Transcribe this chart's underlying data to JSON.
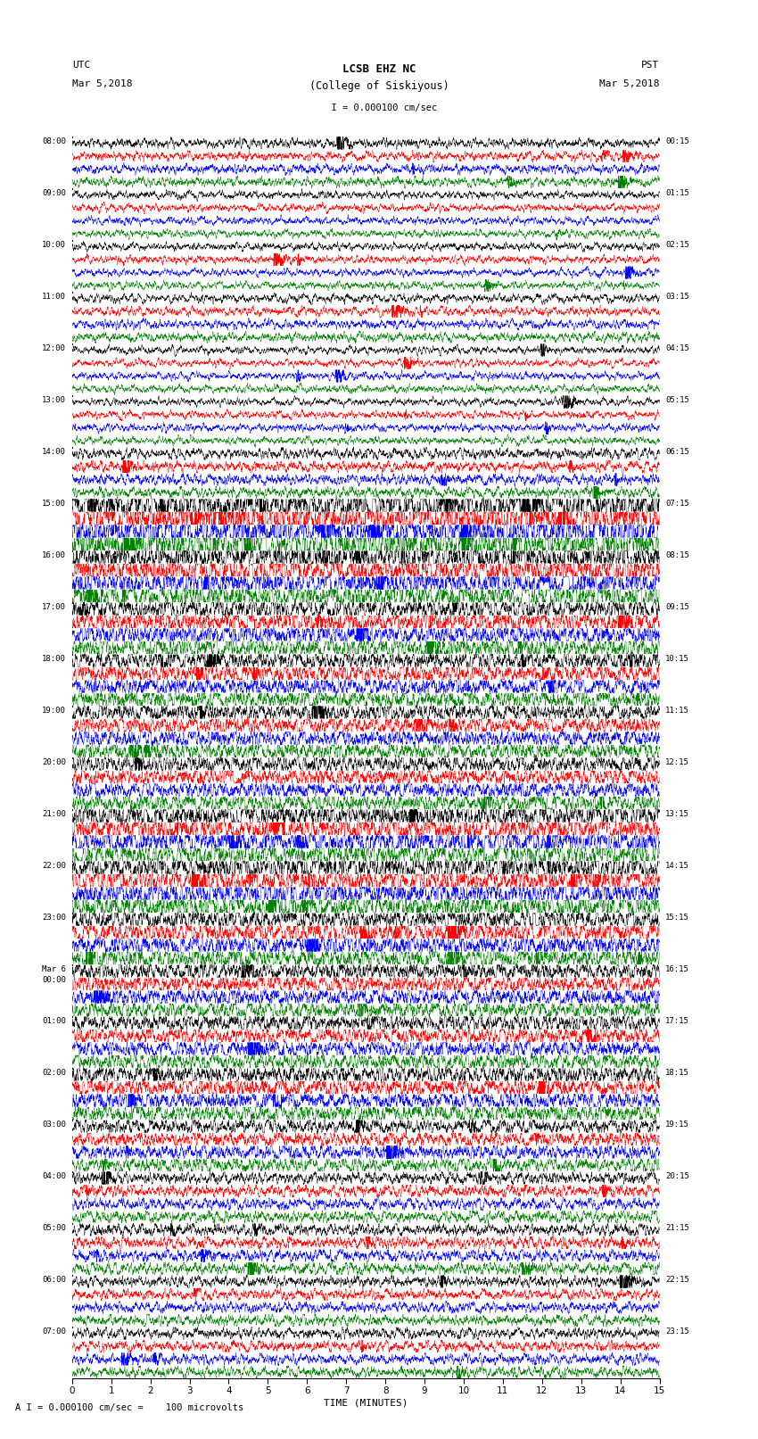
{
  "title_line1": "LCSB EHZ NC",
  "title_line2": "(College of Siskiyous)",
  "scale_label": "  I = 0.000100 cm/sec",
  "bottom_label": "A I = 0.000100 cm/sec =    100 microvolts",
  "xlabel": "TIME (MINUTES)",
  "utc_label": "UTC",
  "utc_date": "Mar 5,2018",
  "pst_label": "PST",
  "pst_date": "Mar 5,2018",
  "left_times": [
    "08:00",
    "09:00",
    "10:00",
    "11:00",
    "12:00",
    "13:00",
    "14:00",
    "15:00",
    "16:00",
    "17:00",
    "18:00",
    "19:00",
    "20:00",
    "21:00",
    "22:00",
    "23:00",
    "Mar 6\n00:00",
    "01:00",
    "02:00",
    "03:00",
    "04:00",
    "05:00",
    "06:00",
    "07:00"
  ],
  "right_times": [
    "00:15",
    "01:15",
    "02:15",
    "03:15",
    "04:15",
    "05:15",
    "06:15",
    "07:15",
    "08:15",
    "09:15",
    "10:15",
    "11:15",
    "12:15",
    "13:15",
    "14:15",
    "15:15",
    "16:15",
    "17:15",
    "18:15",
    "19:15",
    "20:15",
    "21:15",
    "22:15",
    "23:15"
  ],
  "colors": [
    "black",
    "red",
    "blue",
    "green"
  ],
  "n_segments": 24,
  "traces_per_segment": 4,
  "minutes": 15,
  "bg_color": "white",
  "noise_seed": 42
}
